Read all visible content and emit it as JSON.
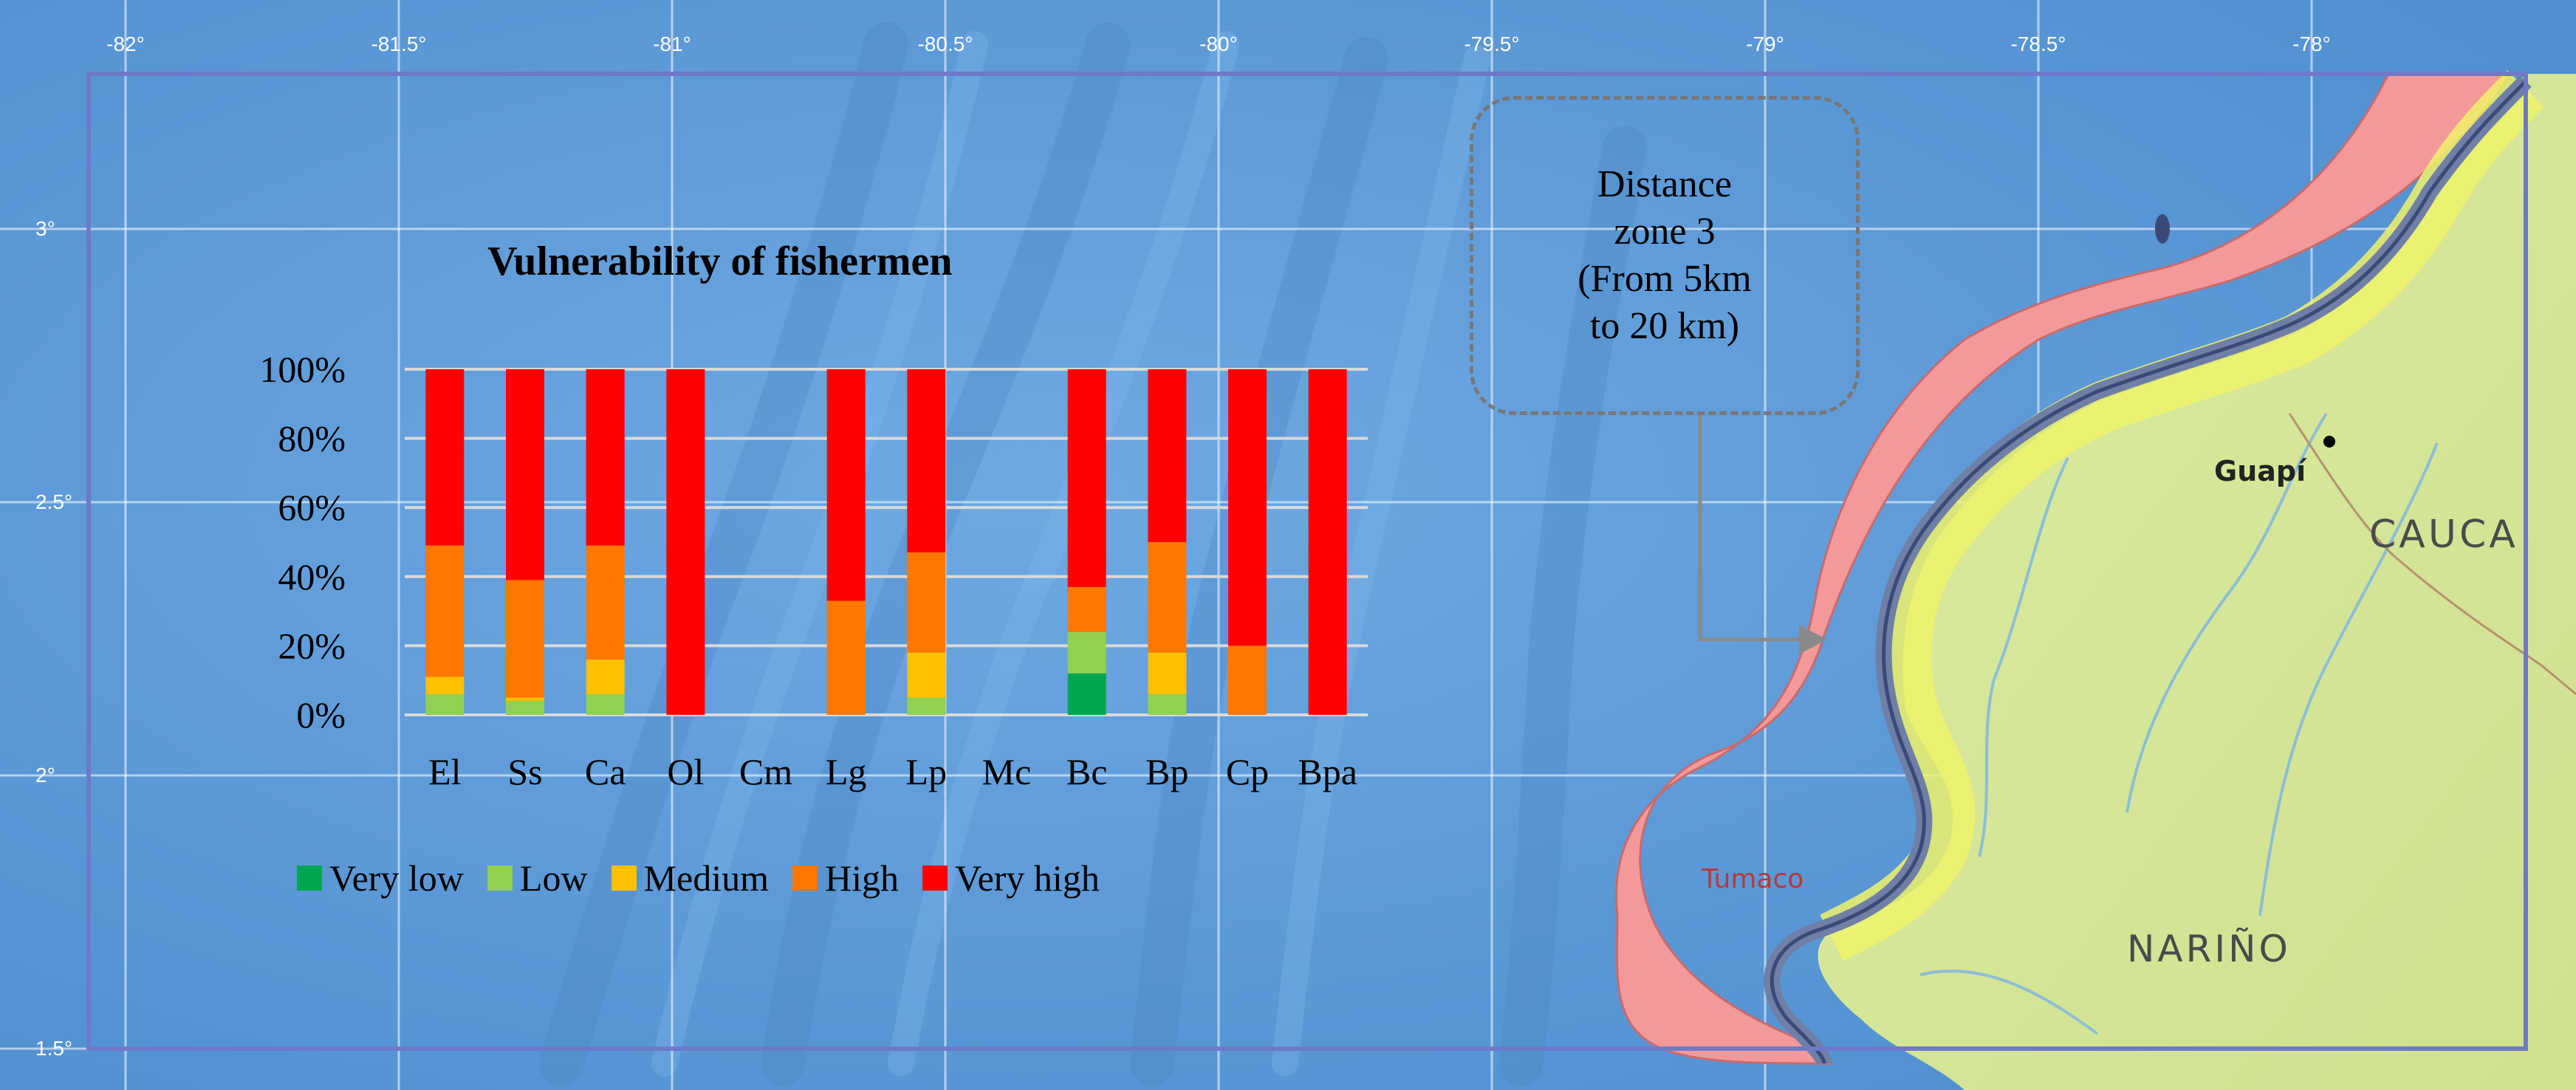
{
  "map": {
    "longitude_labels": [
      "-82°",
      "-81.5°",
      "-81°",
      "-80.5°",
      "-80°",
      "-79.5°",
      "-79°",
      "-78.5°",
      "-78°"
    ],
    "latitude_labels": [
      "3°",
      "2.5°",
      "2°",
      "1.5°"
    ],
    "places": {
      "guapi": "Guapí",
      "cauca": "CAUCA",
      "narino": "NARIÑO",
      "tumaco": "Tumaco"
    },
    "colors": {
      "ocean": "#5b9ad8",
      "distance_zone": "#f4999a",
      "land": "#d8ea9c",
      "coast_band": "#6f7fa5"
    }
  },
  "callout": {
    "lines": [
      "Distance",
      "zone 3",
      "(From 5km",
      "to 20 km)"
    ]
  },
  "chart_data": {
    "type": "bar",
    "stacked": true,
    "title": "Vulnerability of fishermen",
    "categories": [
      "El",
      "Ss",
      "Ca",
      "Ol",
      "Cm",
      "Lg",
      "Lp",
      "Mc",
      "Bc",
      "Bp",
      "Cp",
      "Bpa"
    ],
    "ylim": [
      0,
      100
    ],
    "yticks": [
      "0%",
      "20%",
      "40%",
      "60%",
      "80%",
      "100%"
    ],
    "grid": true,
    "legend_position": "bottom",
    "series": [
      {
        "name": "Very low",
        "color": "#00a651",
        "values": [
          0,
          0,
          0,
          0,
          null,
          0,
          0,
          null,
          12,
          0,
          0,
          0
        ]
      },
      {
        "name": "Low",
        "color": "#92d050",
        "values": [
          6,
          4,
          6,
          0,
          null,
          0,
          5,
          null,
          12,
          6,
          0,
          0
        ]
      },
      {
        "name": "Medium",
        "color": "#ffc000",
        "values": [
          5,
          1,
          10,
          0,
          null,
          0,
          13,
          null,
          0,
          12,
          0,
          0
        ]
      },
      {
        "name": "High",
        "color": "#ff7700",
        "values": [
          38,
          34,
          33,
          0,
          null,
          33,
          29,
          null,
          13,
          32,
          20,
          0
        ]
      },
      {
        "name": "Very high",
        "color": "#ff0000",
        "values": [
          51,
          61,
          51,
          100,
          null,
          67,
          53,
          null,
          63,
          50,
          80,
          100
        ]
      }
    ]
  }
}
